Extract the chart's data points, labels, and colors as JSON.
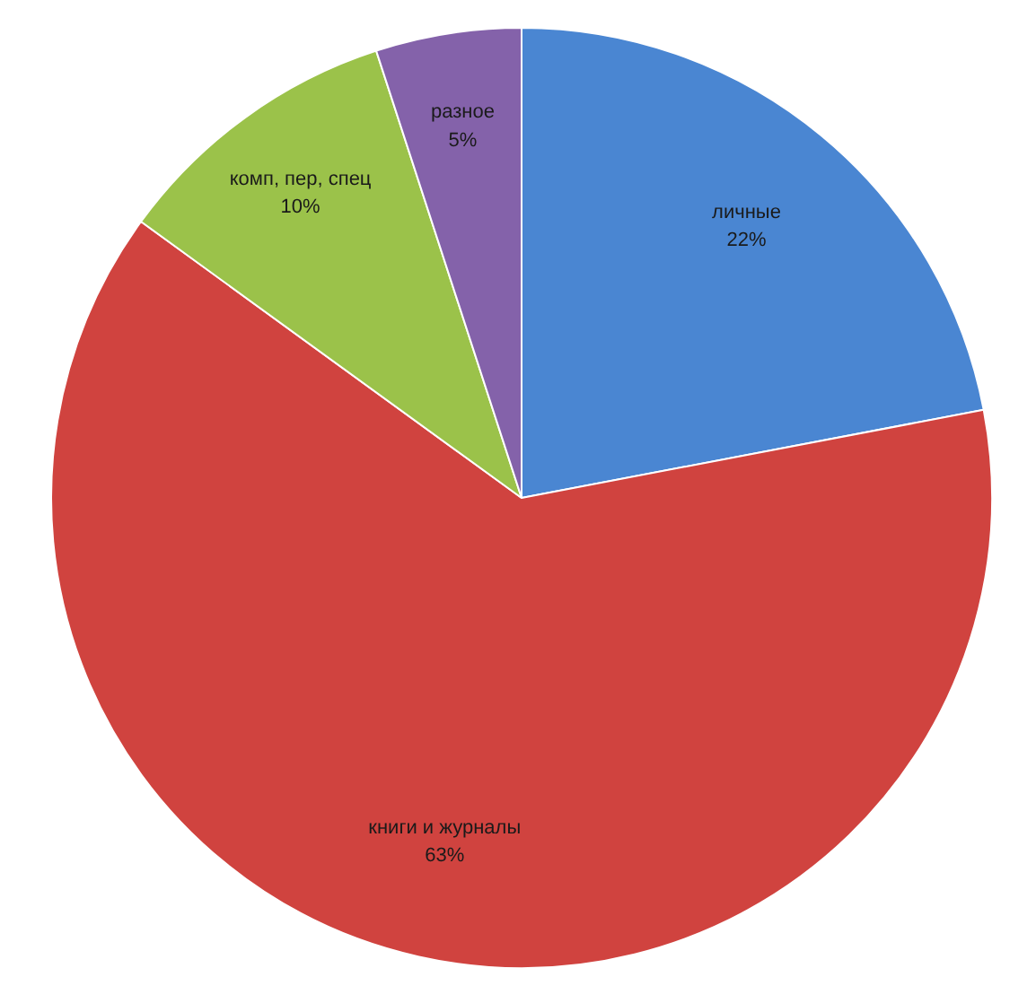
{
  "chart_data": {
    "type": "pie",
    "categories": [
      "личные",
      "книги и журналы",
      "комп, пер, спец",
      "разное"
    ],
    "values": [
      22,
      63,
      10,
      5
    ],
    "colors": [
      "#4a86d2",
      "#d0433f",
      "#9bc24a",
      "#8462aa"
    ],
    "value_labels": [
      "22%",
      "63%",
      "10%",
      "5%"
    ],
    "legend": false
  }
}
